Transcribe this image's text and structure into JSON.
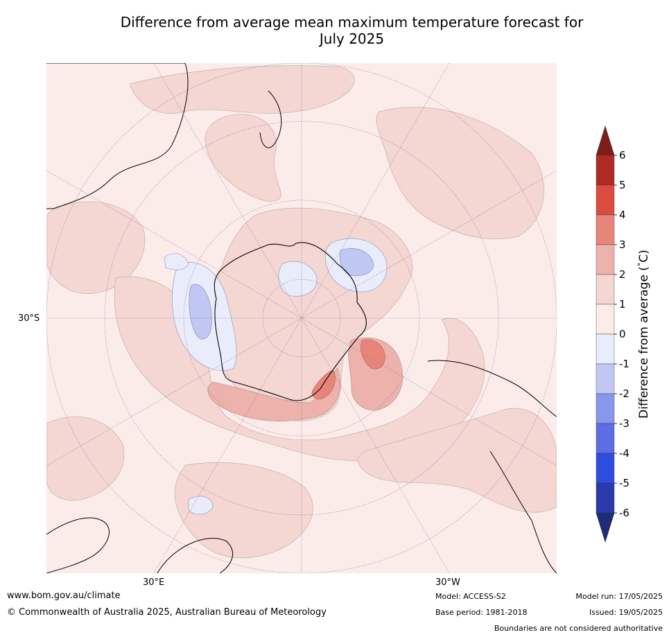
{
  "title_line1": "Difference from average mean maximum temperature forecast for",
  "title_line2": "July 2025",
  "axis_labels": {
    "lat_left": "30°S",
    "lon_left": "30°E",
    "lon_right": "30°W"
  },
  "colorbar": {
    "label": "Difference from average (°C)",
    "label_text": "Difference from average (",
    "label_unit": "C)",
    "ticks": [
      "6",
      "5",
      "4",
      "3",
      "2",
      "1",
      "0",
      "-1",
      "-2",
      "-3",
      "-4",
      "-5",
      "-6"
    ],
    "colors": {
      "extend_top": "#7f1d1b",
      "5_6": "#b02b25",
      "4_5": "#dc4b40",
      "3_4": "#e8857b",
      "2_3": "#edb2ab",
      "1_2": "#f4d6d3",
      "0_1": "#fbecea",
      "m1_0": "#e9ecfa",
      "m2_m1": "#c0c7f2",
      "m3_m2": "#8897ec",
      "m4_m3": "#5b6ee4",
      "m5_m4": "#2f4ee0",
      "m6_m5": "#2a3aab",
      "extend_bottom": "#1f2a78"
    }
  },
  "footer": {
    "url": "www.bom.gov.au/climate",
    "copyright": "© Commonwealth of Australia 2025, Australian Bureau of Meteorology",
    "model": "Model: ACCESS-S2",
    "base_period": "Base period: 1981-2018",
    "model_run": "Model run: 17/05/2025",
    "issued": "Issued: 19/05/2025",
    "boundaries": "Boundaries are not considered authoritative"
  }
}
